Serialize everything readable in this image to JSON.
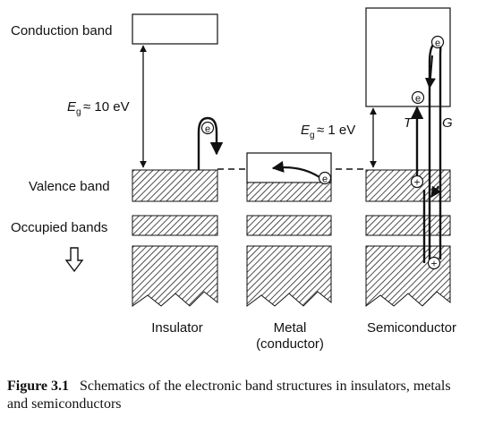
{
  "labels": {
    "conduction_band": "Conduction band",
    "valence_band": "Valence band",
    "occupied_bands": "Occupied bands"
  },
  "gap_labels": {
    "insulator": {
      "symbol": "E",
      "subscript": "g",
      "value": "≈ 10 eV"
    },
    "semiconductor": {
      "symbol": "E",
      "subscript": "g",
      "value": "≈ 1 eV"
    }
  },
  "columns": {
    "insulator": "Insulator",
    "metal_line1": "Metal",
    "metal_line2": "(conductor)",
    "semiconductor": "Semiconductor"
  },
  "particles": {
    "electron": "e",
    "hole": "+"
  },
  "process_labels": {
    "thermal": "T",
    "generation": "G"
  },
  "caption": {
    "label": "Figure 3.1",
    "text": "Schematics of the electronic band structures in insulators, metals and semiconductors"
  },
  "colors": {
    "line": "#111111",
    "hatch": "#222222",
    "background": "#ffffff"
  }
}
